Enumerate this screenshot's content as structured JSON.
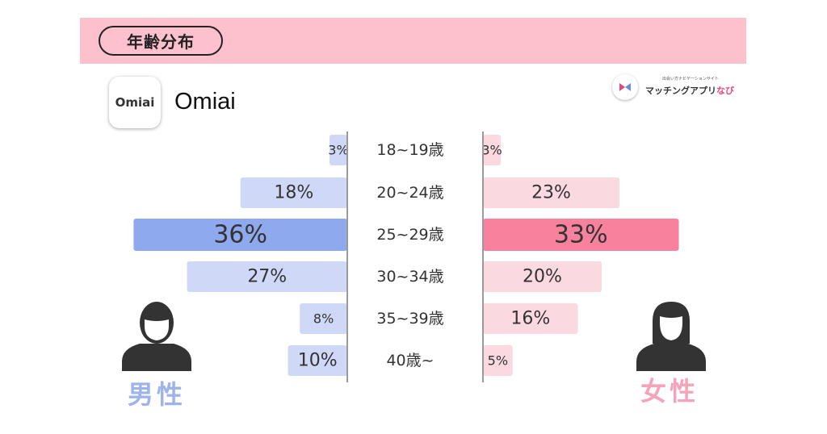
{
  "title": "年齢分布",
  "app": {
    "icon_text": "Omiai",
    "name": "Omiai"
  },
  "brand": {
    "tagline": "出会い方ナビゲーションサイト",
    "name_main": "マッチングアプリ",
    "name_accent": "なび"
  },
  "legend": {
    "male": "男性",
    "female": "女性"
  },
  "colors": {
    "header": "#fdc0cd",
    "male_bar": "#cfd9f7",
    "male_highlight": "#8fa9ef",
    "female_bar": "#fbd9e0",
    "female_highlight": "#f8829e",
    "divider": "#9a9a9a",
    "icon": "#333333"
  },
  "chart_data": {
    "type": "bar",
    "orientation": "horizontal-butterfly",
    "title": "年齢分布",
    "categories": [
      "18~19歳",
      "20~24歳",
      "25~29歳",
      "30~34歳",
      "35~39歳",
      "40歳~"
    ],
    "series": [
      {
        "name": "男性",
        "values": [
          3,
          18,
          36,
          27,
          8,
          10
        ],
        "labels": [
          "3%",
          "18%",
          "36%",
          "27%",
          "8%",
          "10%"
        ]
      },
      {
        "name": "女性",
        "values": [
          3,
          23,
          33,
          20,
          16,
          5
        ],
        "labels": [
          "3%",
          "23%",
          "33%",
          "20%",
          "16%",
          "5%"
        ]
      }
    ],
    "highlight_category": "25~29歳",
    "xlim": [
      0,
      36
    ],
    "unit": "%"
  }
}
